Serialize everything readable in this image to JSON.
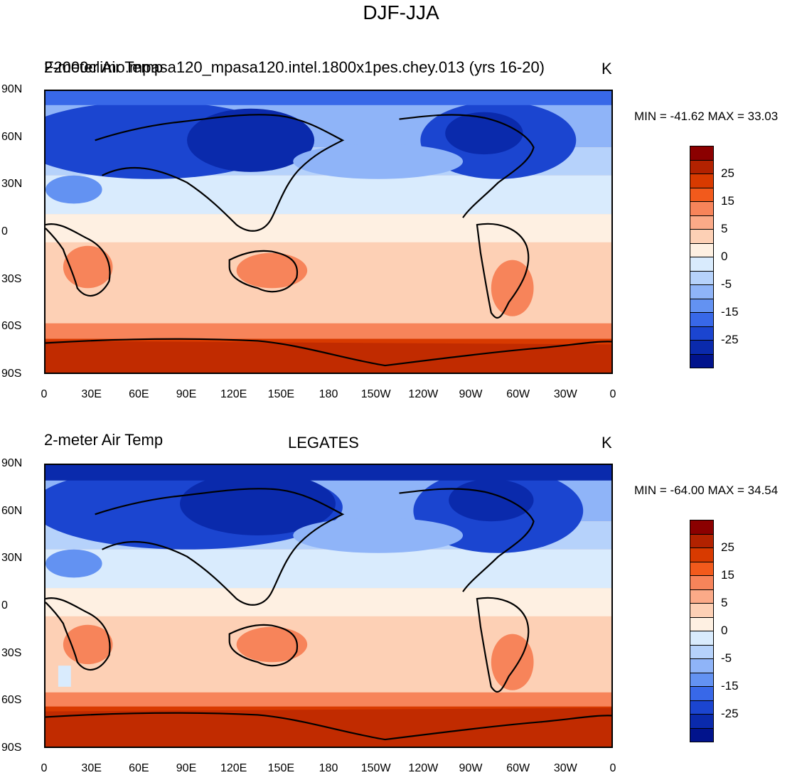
{
  "main_title": "DJF-JJA",
  "lat_labels": [
    "90N",
    "60N",
    "30N",
    "0",
    "30S",
    "60S",
    "90S"
  ],
  "lon_labels": [
    "0",
    "30E",
    "60E",
    "90E",
    "120E",
    "150E",
    "180",
    "150W",
    "120W",
    "90W",
    "60W",
    "30W",
    "0"
  ],
  "colorbar": {
    "colors": [
      "#8b0000",
      "#b22200",
      "#d83a00",
      "#f25a1c",
      "#f7845a",
      "#fbaa88",
      "#fdd0b5",
      "#fef0e2",
      "#d9ebfd",
      "#b6d2fb",
      "#8fb4f8",
      "#6392f2",
      "#3868e8",
      "#1b45d0",
      "#0a2aac",
      "#01138c"
    ],
    "labels": [
      "25",
      "15",
      "5",
      "0",
      "-5",
      "-15",
      "-25"
    ]
  },
  "panels": [
    {
      "left_title": "2-meter Air Temp",
      "center_title": "F2000climo.mpasa120_mpasa120.intel.1800x1pes.chey.013 (yrs 16-20)",
      "units": "K",
      "min_max": "MIN = -41.62 MAX =  33.03"
    },
    {
      "left_title": "2-meter Air Temp",
      "center_title": "LEGATES",
      "units": "K",
      "min_max": "MIN = -64.00 MAX =  34.54"
    }
  ]
}
